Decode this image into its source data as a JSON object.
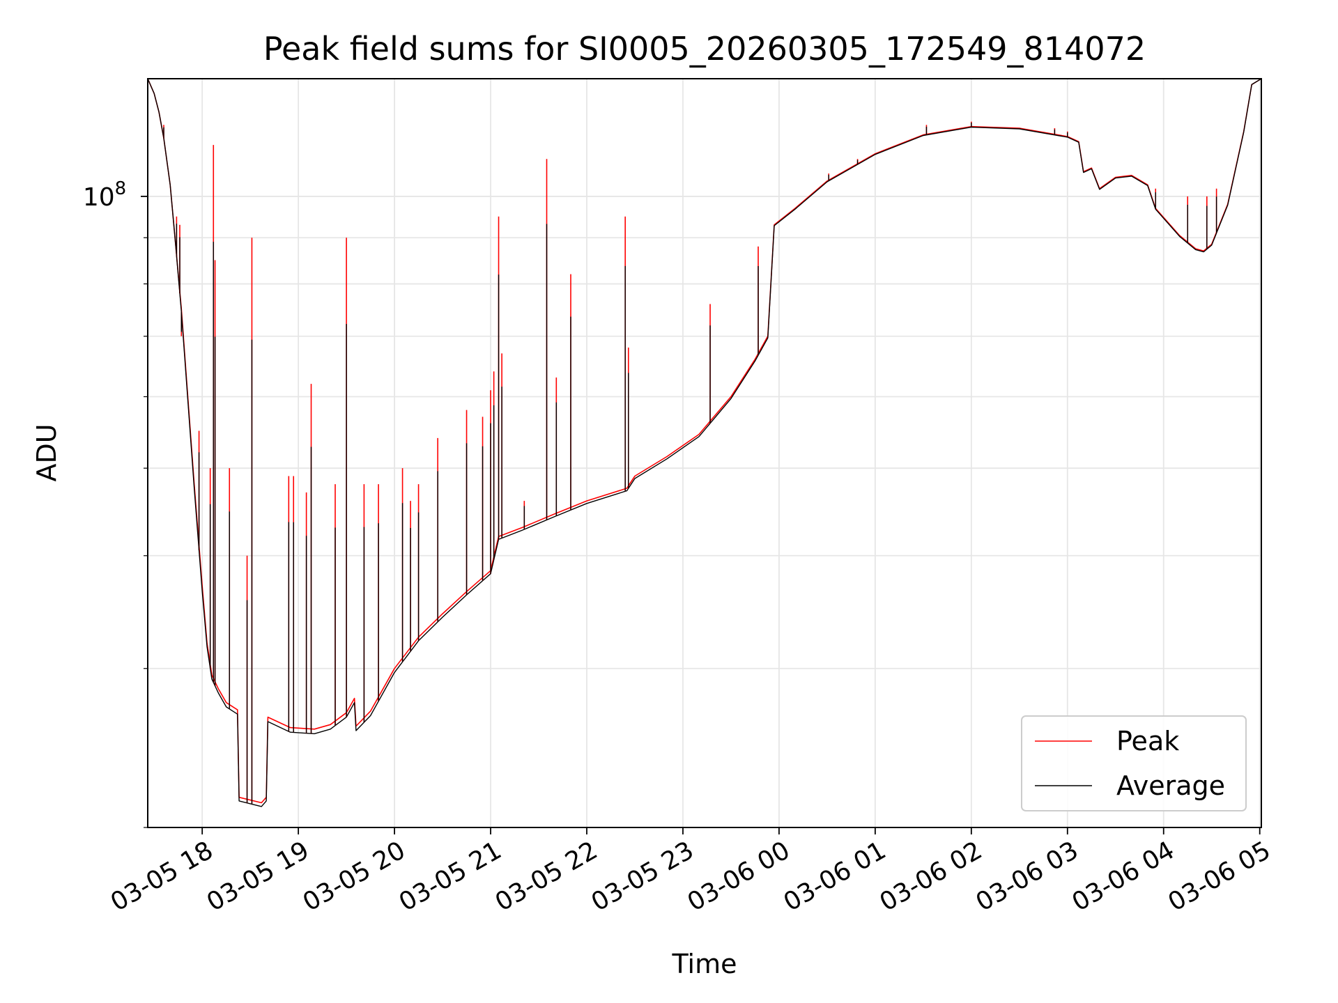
{
  "chart_data": {
    "type": "line",
    "title": "Peak field sums for SI0005_20260305_172549_814072",
    "xlabel": "Time",
    "ylabel": "ADU",
    "yscale": "log",
    "ylim": [
      20000000,
      135000000
    ],
    "xlim": [
      "2026-03-05 17:26",
      "2026-03-06 05:01"
    ],
    "grid": true,
    "legend_position": "lower-right",
    "x_ticks": [
      "03-05 18",
      "03-05 19",
      "03-05 20",
      "03-05 21",
      "03-05 22",
      "03-05 23",
      "03-06 00",
      "03-06 01",
      "03-06 02",
      "03-06 03",
      "03-06 04",
      "03-06 05"
    ],
    "y_ticks": [
      {
        "label_base": "10",
        "label_exp": "8",
        "value": 100000000
      }
    ],
    "series": [
      {
        "name": "Peak",
        "color": "#ff0000",
        "points": [
          [
            "2026-03-05 17:26",
            135000000
          ],
          [
            "2026-03-05 17:30",
            130000000
          ],
          [
            "2026-03-05 17:33",
            124000000
          ],
          [
            "2026-03-05 17:36",
            116000000
          ],
          [
            "2026-03-05 17:40",
            103000000
          ],
          [
            "2026-03-05 17:43",
            90000000
          ],
          [
            "2026-03-05 17:47",
            75000000
          ],
          [
            "2026-03-05 17:51",
            60000000
          ],
          [
            "2026-03-05 17:55",
            48000000
          ],
          [
            "2026-03-05 18:00",
            37000000
          ],
          [
            "2026-03-05 18:03",
            32000000
          ],
          [
            "2026-03-05 18:06",
            29500000
          ],
          [
            "2026-03-05 18:10",
            28500000
          ],
          [
            "2026-03-05 18:15",
            27500000
          ],
          [
            "2026-03-05 18:22",
            27000000
          ],
          [
            "2026-03-05 18:23",
            21600000
          ],
          [
            "2026-03-05 18:37",
            21300000
          ],
          [
            "2026-03-05 18:40",
            21600000
          ],
          [
            "2026-03-05 18:41",
            26500000
          ],
          [
            "2026-03-05 18:55",
            25800000
          ],
          [
            "2026-03-05 19:10",
            25700000
          ],
          [
            "2026-03-05 19:20",
            26000000
          ],
          [
            "2026-03-05 19:30",
            26800000
          ],
          [
            "2026-03-05 19:35",
            27800000
          ],
          [
            "2026-03-05 19:36",
            25900000
          ],
          [
            "2026-03-05 19:45",
            26900000
          ],
          [
            "2026-03-05 20:00",
            30000000
          ],
          [
            "2026-03-05 20:15",
            32500000
          ],
          [
            "2026-03-05 20:30",
            34500000
          ],
          [
            "2026-03-05 20:45",
            36500000
          ],
          [
            "2026-03-05 21:00",
            38500000
          ],
          [
            "2026-03-05 21:05",
            42000000
          ],
          [
            "2026-03-05 21:20",
            43000000
          ],
          [
            "2026-03-05 21:40",
            44500000
          ],
          [
            "2026-03-05 22:00",
            46000000
          ],
          [
            "2026-03-05 22:25",
            47500000
          ],
          [
            "2026-03-05 22:30",
            49000000
          ],
          [
            "2026-03-05 22:50",
            51500000
          ],
          [
            "2026-03-05 23:10",
            54500000
          ],
          [
            "2026-03-05 23:30",
            60000000
          ],
          [
            "2026-03-05 23:45",
            66000000
          ],
          [
            "2026-03-05 23:53",
            70000000
          ],
          [
            "2026-03-05 23:57",
            93000000
          ],
          [
            "2026-03-06 00:10",
            97000000
          ],
          [
            "2026-03-06 00:30",
            104000000
          ],
          [
            "2026-03-06 01:00",
            111500000
          ],
          [
            "2026-03-06 01:30",
            117000000
          ],
          [
            "2026-03-06 02:00",
            119500000
          ],
          [
            "2026-03-06 02:30",
            119000000
          ],
          [
            "2026-03-06 03:00",
            116500000
          ],
          [
            "2026-03-06 03:07",
            115000000
          ],
          [
            "2026-03-06 03:10",
            106500000
          ],
          [
            "2026-03-06 03:15",
            107500000
          ],
          [
            "2026-03-06 03:20",
            102000000
          ],
          [
            "2026-03-06 03:30",
            105000000
          ],
          [
            "2026-03-06 03:40",
            105500000
          ],
          [
            "2026-03-06 03:50",
            103000000
          ],
          [
            "2026-03-06 03:55",
            97000000
          ],
          [
            "2026-03-06 04:10",
            90500000
          ],
          [
            "2026-03-06 04:20",
            87500000
          ],
          [
            "2026-03-06 04:25",
            87000000
          ],
          [
            "2026-03-06 04:30",
            88500000
          ],
          [
            "2026-03-06 04:40",
            98000000
          ],
          [
            "2026-03-06 04:50",
            118000000
          ],
          [
            "2026-03-06 04:55",
            133000000
          ],
          [
            "2026-03-06 05:01",
            135000000
          ]
        ]
      },
      {
        "name": "Average",
        "color": "#000000",
        "points": [
          [
            "2026-03-05 17:26",
            135000000
          ],
          [
            "2026-03-05 17:30",
            130000000
          ],
          [
            "2026-03-05 17:33",
            124000000
          ],
          [
            "2026-03-05 17:36",
            116000000
          ],
          [
            "2026-03-05 17:40",
            103000000
          ],
          [
            "2026-03-05 17:43",
            90000000
          ],
          [
            "2026-03-05 17:47",
            74500000
          ],
          [
            "2026-03-05 17:51",
            59500000
          ],
          [
            "2026-03-05 17:55",
            47500000
          ],
          [
            "2026-03-05 18:00",
            36500000
          ],
          [
            "2026-03-05 18:03",
            31700000
          ],
          [
            "2026-03-05 18:06",
            29200000
          ],
          [
            "2026-03-05 18:10",
            28200000
          ],
          [
            "2026-03-05 18:15",
            27200000
          ],
          [
            "2026-03-05 18:22",
            26700000
          ],
          [
            "2026-03-05 18:23",
            21400000
          ],
          [
            "2026-03-05 18:37",
            21100000
          ],
          [
            "2026-03-05 18:40",
            21400000
          ],
          [
            "2026-03-05 18:41",
            26200000
          ],
          [
            "2026-03-05 18:55",
            25500000
          ],
          [
            "2026-03-05 19:10",
            25400000
          ],
          [
            "2026-03-05 19:20",
            25700000
          ],
          [
            "2026-03-05 19:30",
            26500000
          ],
          [
            "2026-03-05 19:35",
            27500000
          ],
          [
            "2026-03-05 19:36",
            25600000
          ],
          [
            "2026-03-05 19:45",
            26600000
          ],
          [
            "2026-03-05 20:00",
            29700000
          ],
          [
            "2026-03-05 20:15",
            32200000
          ],
          [
            "2026-03-05 20:30",
            34200000
          ],
          [
            "2026-03-05 20:45",
            36200000
          ],
          [
            "2026-03-05 21:00",
            38200000
          ],
          [
            "2026-03-05 21:05",
            41700000
          ],
          [
            "2026-03-05 21:20",
            42700000
          ],
          [
            "2026-03-05 21:40",
            44200000
          ],
          [
            "2026-03-05 22:00",
            45700000
          ],
          [
            "2026-03-05 22:25",
            47200000
          ],
          [
            "2026-03-05 22:30",
            48700000
          ],
          [
            "2026-03-05 22:50",
            51200000
          ],
          [
            "2026-03-05 23:10",
            54200000
          ],
          [
            "2026-03-05 23:30",
            59700000
          ],
          [
            "2026-03-05 23:45",
            65700000
          ],
          [
            "2026-03-05 23:53",
            69700000
          ],
          [
            "2026-03-05 23:57",
            92800000
          ],
          [
            "2026-03-06 00:10",
            96800000
          ],
          [
            "2026-03-06 00:30",
            103800000
          ],
          [
            "2026-03-06 01:00",
            111300000
          ],
          [
            "2026-03-06 01:30",
            116800000
          ],
          [
            "2026-03-06 02:00",
            119300000
          ],
          [
            "2026-03-06 02:30",
            118800000
          ],
          [
            "2026-03-06 03:00",
            116300000
          ],
          [
            "2026-03-06 03:07",
            114800000
          ],
          [
            "2026-03-06 03:10",
            106300000
          ],
          [
            "2026-03-06 03:15",
            107300000
          ],
          [
            "2026-03-06 03:20",
            101800000
          ],
          [
            "2026-03-06 03:30",
            104800000
          ],
          [
            "2026-03-06 03:40",
            105300000
          ],
          [
            "2026-03-06 03:50",
            102800000
          ],
          [
            "2026-03-06 03:55",
            96800000
          ],
          [
            "2026-03-06 04:10",
            90300000
          ],
          [
            "2026-03-06 04:20",
            87300000
          ],
          [
            "2026-03-06 04:25",
            86800000
          ],
          [
            "2026-03-06 04:30",
            88300000
          ],
          [
            "2026-03-06 04:40",
            97800000
          ],
          [
            "2026-03-06 04:50",
            117800000
          ],
          [
            "2026-03-06 04:55",
            133000000
          ],
          [
            "2026-03-06 05:01",
            135000000
          ]
        ]
      }
    ],
    "spikes": [
      [
        "2026-03-05 17:36",
        120000000
      ],
      [
        "2026-03-05 17:44",
        95000000
      ],
      [
        "2026-03-05 17:46",
        93000000
      ],
      [
        "2026-03-05 17:47",
        70000000
      ],
      [
        "2026-03-05 17:58",
        55000000
      ],
      [
        "2026-03-05 18:05",
        50000000
      ],
      [
        "2026-03-05 18:07",
        114000000
      ],
      [
        "2026-03-05 18:08",
        85000000
      ],
      [
        "2026-03-05 18:17",
        50000000
      ],
      [
        "2026-03-05 18:28",
        40000000
      ],
      [
        "2026-03-05 18:31",
        90000000
      ],
      [
        "2026-03-05 18:54",
        49000000
      ],
      [
        "2026-03-05 18:57",
        49000000
      ],
      [
        "2026-03-05 19:05",
        47000000
      ],
      [
        "2026-03-05 19:08",
        62000000
      ],
      [
        "2026-03-05 19:23",
        48000000
      ],
      [
        "2026-03-05 19:30",
        90000000
      ],
      [
        "2026-03-05 19:41",
        48000000
      ],
      [
        "2026-03-05 19:50",
        48000000
      ],
      [
        "2026-03-05 20:05",
        50000000
      ],
      [
        "2026-03-05 20:10",
        46000000
      ],
      [
        "2026-03-05 20:15",
        48000000
      ],
      [
        "2026-03-05 20:27",
        54000000
      ],
      [
        "2026-03-05 20:45",
        58000000
      ],
      [
        "2026-03-05 20:55",
        57000000
      ],
      [
        "2026-03-05 21:00",
        61000000
      ],
      [
        "2026-03-05 21:02",
        64000000
      ],
      [
        "2026-03-05 21:05",
        95000000
      ],
      [
        "2026-03-05 21:07",
        67000000
      ],
      [
        "2026-03-05 21:21",
        46000000
      ],
      [
        "2026-03-05 21:35",
        110000000
      ],
      [
        "2026-03-05 21:41",
        63000000
      ],
      [
        "2026-03-05 21:50",
        82000000
      ],
      [
        "2026-03-05 22:24",
        95000000
      ],
      [
        "2026-03-05 22:26",
        68000000
      ],
      [
        "2026-03-05 23:17",
        76000000
      ],
      [
        "2026-03-05 23:47",
        88000000
      ],
      [
        "2026-03-06 00:31",
        106000000
      ],
      [
        "2026-03-06 00:49",
        110000000
      ],
      [
        "2026-03-06 01:32",
        120000000
      ],
      [
        "2026-03-06 02:00",
        121000000
      ],
      [
        "2026-03-06 02:52",
        119000000
      ],
      [
        "2026-03-06 03:00",
        118000000
      ],
      [
        "2026-03-06 03:55",
        102000000
      ],
      [
        "2026-03-06 04:15",
        100000000
      ],
      [
        "2026-03-06 04:27",
        100000000
      ],
      [
        "2026-03-06 04:33",
        102000000
      ]
    ]
  }
}
